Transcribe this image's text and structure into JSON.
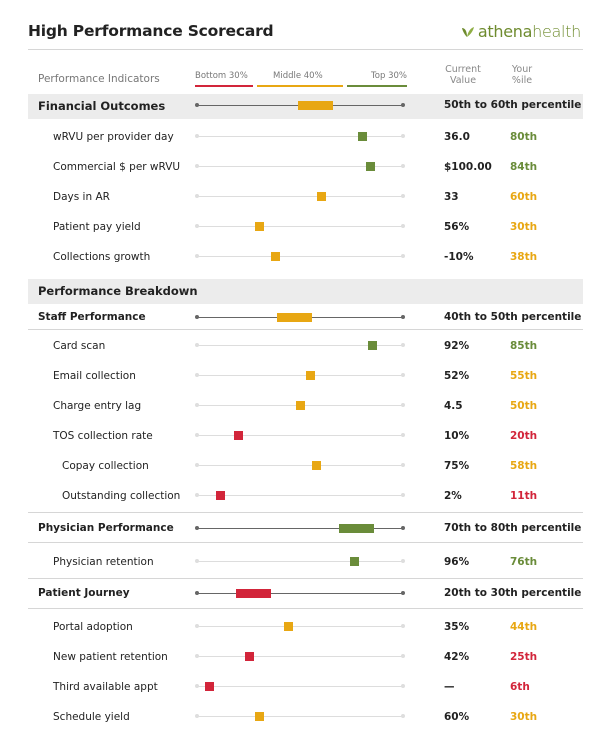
{
  "colors": {
    "red": "#d2253a",
    "orange": "#e8a713",
    "green": "#6a8c3a",
    "darkline": "#666666"
  },
  "header": {
    "title": "High Performance Scorecard",
    "logo_part1": "athena",
    "logo_part2": "health"
  },
  "columns": {
    "indicators": "Performance Indicators",
    "legend_bottom": "Bottom 30%",
    "legend_middle": "Middle 40%",
    "legend_top": "Top 30%",
    "current_value_line1": "Current",
    "current_value_line2": "Value",
    "your_pct_line1": "Your",
    "your_pct_line2": "%ile"
  },
  "financial": {
    "title": "Financial Outcomes",
    "range_text": "50th to 60th percentile",
    "range_low": 50,
    "range_high": 60,
    "items": [
      {
        "name": "wRVU per provider day",
        "value": "36.0",
        "percentile": "80th",
        "p": 80,
        "tier": "green"
      },
      {
        "name": "Commercial $ per wRVU",
        "value": "$100.00",
        "percentile": "84th",
        "p": 84,
        "tier": "green"
      },
      {
        "name": "Days in AR",
        "value": "33",
        "percentile": "60th",
        "p": 60,
        "tier": "orange"
      },
      {
        "name": "Patient pay yield",
        "value": "56%",
        "percentile": "30th",
        "p": 30,
        "tier": "orange"
      },
      {
        "name": "Collections growth",
        "value": "-10%",
        "percentile": "38th",
        "p": 38,
        "tier": "orange"
      }
    ]
  },
  "breakdown": {
    "title": "Performance Breakdown",
    "staff": {
      "title": "Staff Performance",
      "range_text": "40th to 50th percentile",
      "range_low": 40,
      "range_high": 50,
      "items": [
        {
          "name": "Card scan",
          "value": "92%",
          "percentile": "85th",
          "p": 85,
          "tier": "green",
          "indent": 0
        },
        {
          "name": "Email collection",
          "value": "52%",
          "percentile": "55th",
          "p": 55,
          "tier": "orange",
          "indent": 0
        },
        {
          "name": "Charge entry lag",
          "value": "4.5",
          "percentile": "50th",
          "p": 50,
          "tier": "orange",
          "indent": 0
        },
        {
          "name": "TOS collection rate",
          "value": "10%",
          "percentile": "20th",
          "p": 20,
          "tier": "red",
          "indent": 0
        },
        {
          "name": "Copay collection",
          "value": "75%",
          "percentile": "58th",
          "p": 58,
          "tier": "orange",
          "indent": 1
        },
        {
          "name": "Outstanding collection",
          "value": "2%",
          "percentile": "11th",
          "p": 11,
          "tier": "red",
          "indent": 1
        }
      ]
    },
    "physician": {
      "title": "Physician Performance",
      "range_text": "70th to 80th percentile",
      "range_low": 70,
      "range_high": 80,
      "items": [
        {
          "name": "Physician retention",
          "value": "96%",
          "percentile": "76th",
          "p": 76,
          "tier": "green",
          "indent": 0
        }
      ]
    },
    "journey": {
      "title": "Patient Journey",
      "range_text": "20th to 30th percentile",
      "range_low": 20,
      "range_high": 30,
      "items": [
        {
          "name": "Portal adoption",
          "value": "35%",
          "percentile": "44th",
          "p": 44,
          "tier": "orange",
          "indent": 0
        },
        {
          "name": "New patient retention",
          "value": "42%",
          "percentile": "25th",
          "p": 25,
          "tier": "red",
          "indent": 0
        },
        {
          "name": "Third available appt",
          "value": "—",
          "percentile": "6th",
          "p": 6,
          "tier": "red",
          "indent": 0
        },
        {
          "name": "Schedule yield",
          "value": "60%",
          "percentile": "30th",
          "p": 30,
          "tier": "orange",
          "indent": 0
        }
      ]
    }
  }
}
